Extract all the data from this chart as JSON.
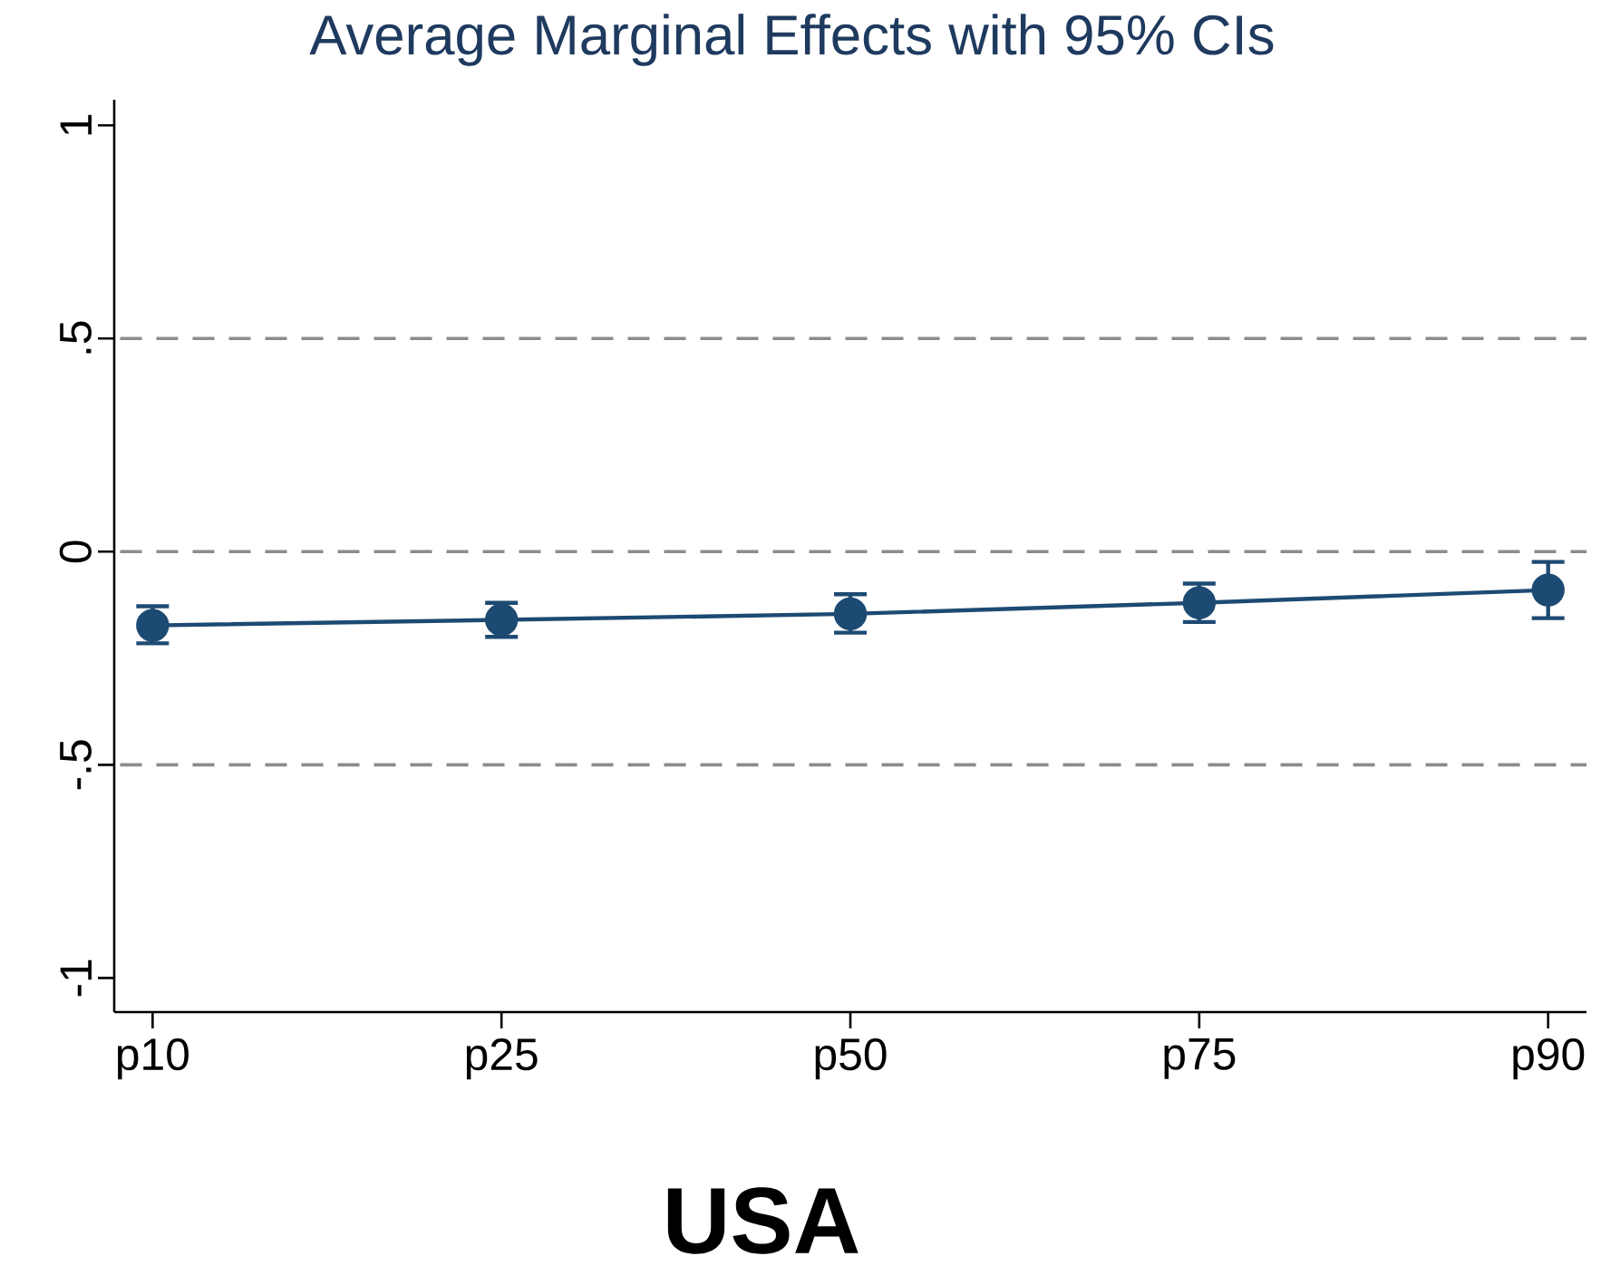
{
  "chart_data": {
    "type": "line",
    "title": "Average Marginal Effects with 95% CIs",
    "xlabel": "USA",
    "categories": [
      "p10",
      "p25",
      "p50",
      "p75",
      "p90"
    ],
    "series": [
      {
        "color": "#1d4a72",
        "values": [
          -0.173,
          -0.16,
          -0.146,
          -0.12,
          -0.09
        ],
        "errors": [
          [
            -0.215,
            -0.128
          ],
          [
            -0.2,
            -0.12
          ],
          [
            -0.19,
            -0.1
          ],
          [
            -0.165,
            -0.075
          ],
          [
            -0.156,
            -0.024
          ]
        ]
      }
    ],
    "ylim": [
      -1.08,
      1.06
    ],
    "yticks": [
      1,
      {
        "value": 0.5,
        "label": ".5"
      },
      0,
      {
        "value": -0.5,
        "label": "-.5"
      },
      -1
    ],
    "ref_lines": [
      {
        "axis": "y",
        "value": 0.5,
        "color": "#8c8c8c",
        "line_style": "dashed"
      },
      {
        "axis": "y",
        "value": 0,
        "color": "#8c8c8c",
        "line_style": "dashed"
      },
      {
        "axis": "y",
        "value": -0.5,
        "color": "#8c8c8c",
        "line_style": "dashed"
      }
    ],
    "marker": "circle",
    "line_style": "solid"
  }
}
